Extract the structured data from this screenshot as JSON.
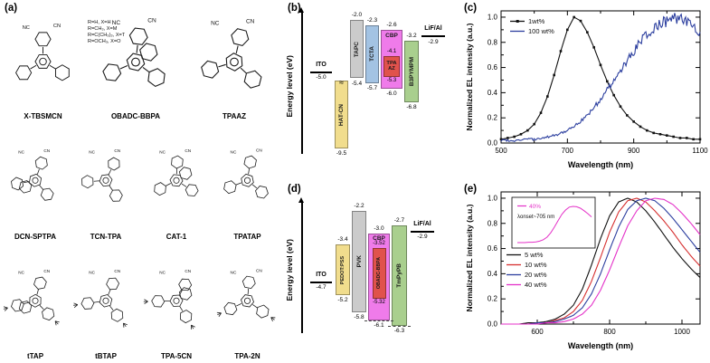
{
  "panels": {
    "a": {
      "label": "(a)",
      "substituent_notes": [
        "R=H, X=H",
        "R=CH₃, X=M",
        "R=C(CH₃)₃, X=T",
        "R=OCH₃, X=O"
      ],
      "molecule_rows": [
        [
          "X-TBSMCN",
          "OBADC-BBPA",
          "TPAAZ"
        ],
        [
          "DCN-SPTPA",
          "TCN-TPA",
          "CAT-1",
          "TPATAP"
        ],
        [
          "tTAP",
          "tBTAP",
          "TPA-5CN",
          "TPA-2N"
        ]
      ]
    },
    "b": {
      "label": "(b)",
      "axis_label": "Energy level (eV)",
      "layers": [
        {
          "type": "electrode",
          "name": "ITO",
          "level": -5.0,
          "value_label": "-5.0"
        },
        {
          "type": "bar",
          "name": "HAT-CN",
          "lumo": -5.55,
          "homo": -9.5,
          "color": "#f1dd8d",
          "homo_label": "-9.5",
          "wavy": true
        },
        {
          "type": "bar",
          "name": "TAPC",
          "lumo": -2.0,
          "homo": -5.4,
          "color": "#cbcbcb",
          "lumo_label": "-2.0",
          "homo_label": "-5.4"
        },
        {
          "type": "bar",
          "name": "TCTA",
          "lumo": -2.3,
          "homo": -5.7,
          "color": "#a3c3e3",
          "lumo_label": "-2.3",
          "homo_label": "-5.7"
        },
        {
          "type": "bar",
          "name": "CBP",
          "lumo": -2.6,
          "homo": -6.0,
          "color": "#ef7bea",
          "lumo_label": "-2.6",
          "homo_label": "-6.0",
          "name_pos": "top",
          "inner": {
            "name": "TPA AZ",
            "lumo": -4.1,
            "homo": -5.3,
            "color": "#e0524c",
            "lumo_label": "-4.1",
            "homo_label": "-5.3"
          }
        },
        {
          "type": "bar",
          "name": "B3PYMPM",
          "lumo": -3.2,
          "homo": -6.8,
          "color": "#a9cf8e",
          "lumo_label": "-3.2",
          "homo_label": "-6.8"
        },
        {
          "type": "electrode",
          "name": "LiF/Al",
          "level": -2.9,
          "value_label": "-2.9"
        }
      ]
    },
    "c": {
      "label": "(c)"
    },
    "d": {
      "label": "(d)",
      "axis_label": "Energy level (eV)",
      "layers": [
        {
          "type": "electrode",
          "name": "ITO",
          "level": -4.7,
          "value_label": "-4.7"
        },
        {
          "type": "bar",
          "name": "PEDOT:PSS",
          "lumo": -3.4,
          "homo": -5.2,
          "color": "#f1dd8d",
          "lumo_label": "-3.4",
          "homo_label": "-5.2"
        },
        {
          "type": "bar",
          "name": "PVK",
          "lumo": -2.2,
          "homo": -5.8,
          "color": "#cbcbcb",
          "lumo_label": "-2.2",
          "homo_label": "-5.8"
        },
        {
          "type": "bar",
          "name": "CBP",
          "lumo": -3.0,
          "homo": -6.1,
          "color": "#ef7bea",
          "lumo_label": "-3.0",
          "homo_label": "-6.1",
          "name_pos": "top",
          "dashed_homo": true,
          "inner": {
            "name": "OBADC-BBPA",
            "lumo": -3.52,
            "homo": -5.32,
            "color": "#e0524c",
            "lumo_label": "-3.52",
            "homo_label": "-5.32",
            "vertical": true
          }
        },
        {
          "type": "bar",
          "name": "TmPyPB",
          "lumo": -2.7,
          "homo": -6.3,
          "color": "#a9cf8e",
          "lumo_label": "-2.7",
          "homo_label": "-6.3",
          "dashed_homo": true
        },
        {
          "type": "electrode",
          "name": "LiF/Al",
          "level": -2.9,
          "value_label": "-2.9"
        }
      ]
    },
    "e": {
      "label": "(e)"
    }
  },
  "chart_data": [
    {
      "id": "chart-c",
      "type": "line",
      "xlabel": "Wavelength (nm)",
      "ylabel": "Normalized EL intensity (a.u.)",
      "xlim": [
        500,
        1100
      ],
      "ylim": [
        0,
        1.05
      ],
      "xticks": [
        500,
        700,
        900,
        1100
      ],
      "xticks_minor": [
        600,
        800,
        1000
      ],
      "yticks": [
        0,
        0.2,
        0.4,
        0.6,
        0.8,
        1.0
      ],
      "legend_position": "upper-left",
      "series": [
        {
          "name": "1wt%",
          "color": "#111111",
          "marker": "square",
          "x": [
            500,
            520,
            540,
            560,
            580,
            600,
            620,
            640,
            660,
            680,
            700,
            720,
            740,
            760,
            780,
            800,
            820,
            840,
            860,
            880,
            900,
            920,
            940,
            960,
            980,
            1000,
            1020,
            1040,
            1060,
            1080,
            1100
          ],
          "y": [
            0.03,
            0.04,
            0.05,
            0.07,
            0.1,
            0.15,
            0.24,
            0.37,
            0.54,
            0.73,
            0.9,
            1.0,
            0.97,
            0.88,
            0.76,
            0.62,
            0.49,
            0.38,
            0.29,
            0.22,
            0.17,
            0.13,
            0.1,
            0.08,
            0.07,
            0.06,
            0.05,
            0.04,
            0.04,
            0.03,
            0.03
          ]
        },
        {
          "name": "100 wt%",
          "color": "#2c3f9f",
          "noisy": true,
          "x": [
            500,
            520,
            540,
            560,
            580,
            600,
            620,
            640,
            660,
            680,
            700,
            720,
            740,
            760,
            780,
            800,
            820,
            840,
            860,
            880,
            900,
            920,
            940,
            960,
            980,
            1000,
            1020,
            1040,
            1060,
            1080,
            1100
          ],
          "y": [
            0.02,
            0.02,
            0.02,
            0.03,
            0.03,
            0.03,
            0.04,
            0.05,
            0.06,
            0.08,
            0.1,
            0.13,
            0.17,
            0.22,
            0.28,
            0.35,
            0.42,
            0.5,
            0.58,
            0.66,
            0.73,
            0.8,
            0.86,
            0.91,
            0.95,
            0.97,
            0.99,
            1.0,
            0.97,
            0.92,
            0.88
          ]
        }
      ]
    },
    {
      "id": "chart-e",
      "type": "line",
      "xlabel": "Wavelength (nm)",
      "ylabel": "Normalized EL intensity (a.u.)",
      "xlim": [
        500,
        1050
      ],
      "ylim": [
        0,
        1.05
      ],
      "xticks": [
        600,
        800,
        1000
      ],
      "xticks_minor": [
        500,
        700,
        900
      ],
      "yticks": [
        0,
        0.2,
        0.4,
        0.6,
        0.8,
        1.0
      ],
      "legend_position": "mid-left",
      "inset": {
        "legend_label": "40%",
        "annotation": "λonset~705 nm",
        "series": "40 wt%"
      },
      "series": [
        {
          "name": "5 wt%",
          "color": "#111111",
          "x": [
            500,
            525,
            550,
            575,
            600,
            625,
            650,
            675,
            700,
            725,
            750,
            775,
            800,
            825,
            850,
            875,
            900,
            925,
            950,
            975,
            1000,
            1025,
            1050
          ],
          "y": [
            0,
            0,
            0,
            0.01,
            0.01,
            0.02,
            0.04,
            0.08,
            0.15,
            0.28,
            0.47,
            0.68,
            0.86,
            0.97,
            1.0,
            0.97,
            0.9,
            0.81,
            0.71,
            0.61,
            0.52,
            0.44,
            0.37
          ]
        },
        {
          "name": "10 wt%",
          "color": "#d62f2f",
          "x": [
            500,
            525,
            550,
            575,
            600,
            625,
            650,
            675,
            700,
            725,
            750,
            775,
            800,
            825,
            850,
            875,
            900,
            925,
            950,
            975,
            1000,
            1025,
            1050
          ],
          "y": [
            0,
            0,
            0,
            0,
            0.01,
            0.01,
            0.03,
            0.05,
            0.1,
            0.19,
            0.34,
            0.53,
            0.73,
            0.89,
            0.98,
            1.0,
            0.97,
            0.9,
            0.82,
            0.73,
            0.63,
            0.54,
            0.46
          ]
        },
        {
          "name": "20 wt%",
          "color": "#2c3f9f",
          "x": [
            500,
            525,
            550,
            575,
            600,
            625,
            650,
            675,
            700,
            725,
            750,
            775,
            800,
            825,
            850,
            875,
            900,
            925,
            950,
            975,
            1000,
            1025,
            1050
          ],
          "y": [
            0,
            0,
            0,
            0,
            0.01,
            0.01,
            0.02,
            0.04,
            0.07,
            0.13,
            0.24,
            0.4,
            0.59,
            0.77,
            0.91,
            0.98,
            1.0,
            0.98,
            0.92,
            0.84,
            0.75,
            0.66,
            0.57
          ]
        },
        {
          "name": "40 wt%",
          "color": "#e431c8",
          "x": [
            500,
            525,
            550,
            575,
            600,
            625,
            650,
            675,
            700,
            725,
            750,
            775,
            800,
            825,
            850,
            875,
            900,
            925,
            950,
            975,
            1000,
            1025,
            1050
          ],
          "y": [
            0,
            0,
            0,
            0,
            0,
            0.01,
            0.01,
            0.02,
            0.04,
            0.08,
            0.15,
            0.27,
            0.43,
            0.61,
            0.78,
            0.9,
            0.98,
            1.0,
            0.99,
            0.95,
            0.88,
            0.8,
            0.71
          ]
        }
      ]
    }
  ]
}
